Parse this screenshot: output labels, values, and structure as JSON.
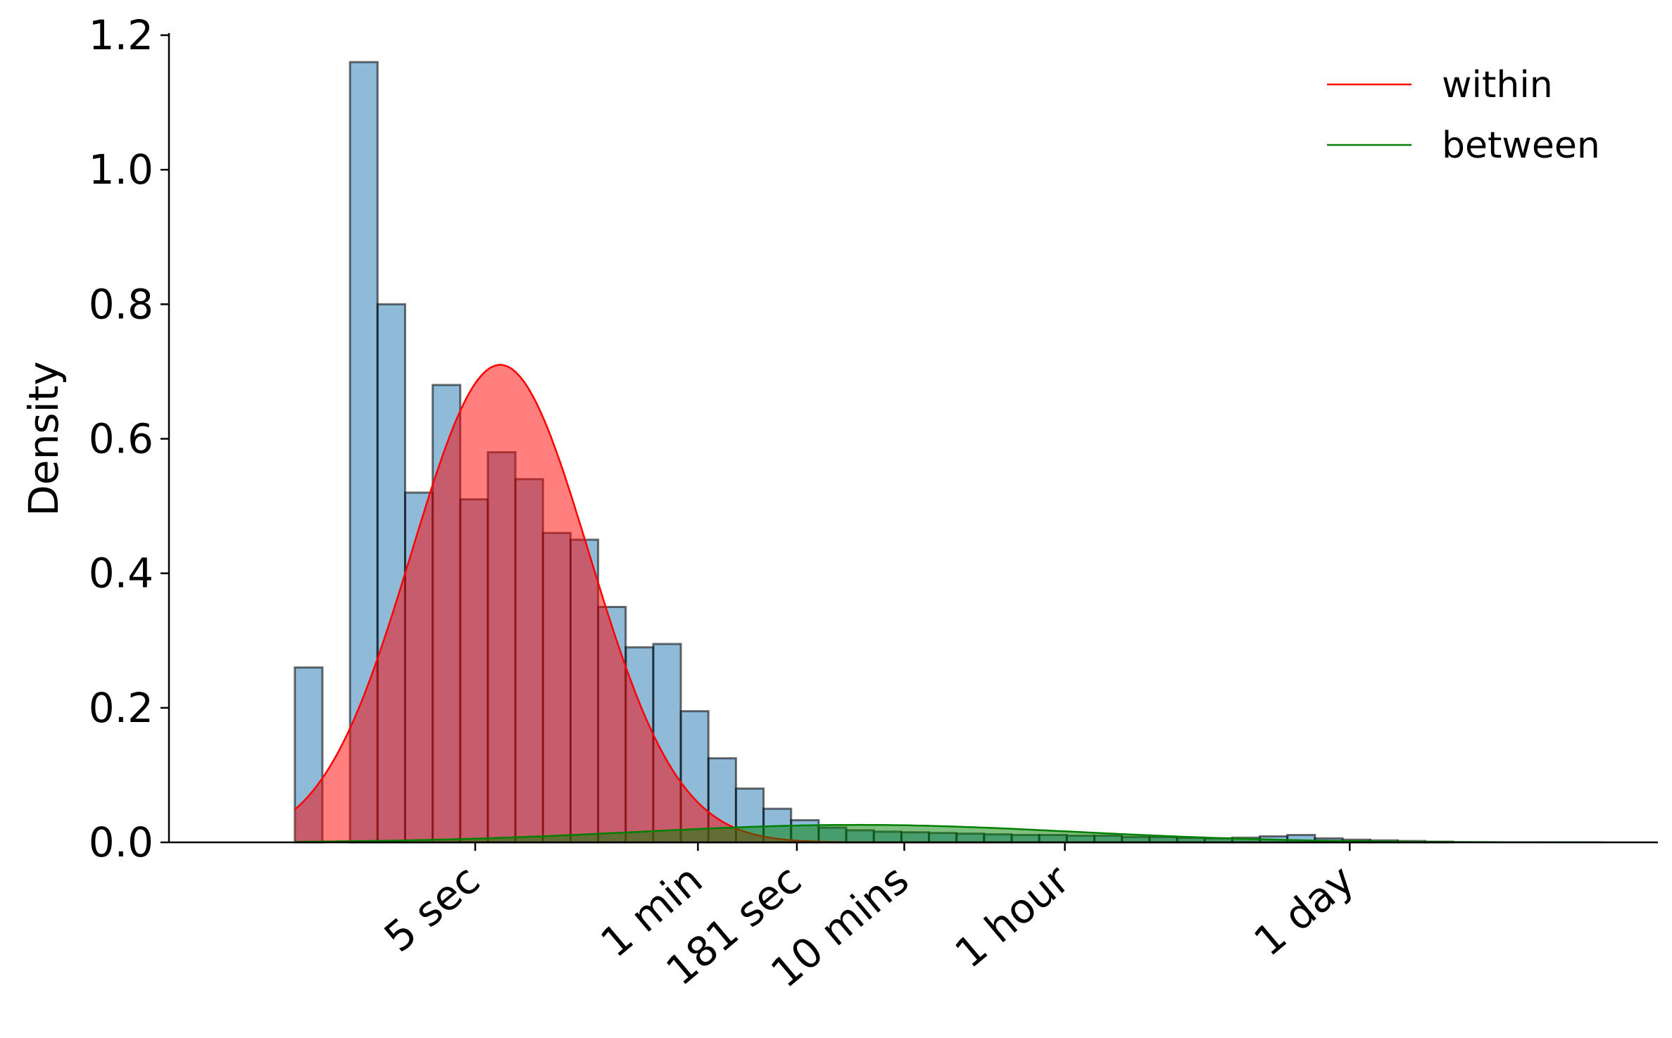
{
  "chart_data": {
    "type": "bar",
    "ylabel": "Density",
    "xlabel": "",
    "ylim": [
      0,
      1.2
    ],
    "yticks": [
      0.0,
      0.2,
      0.4,
      0.6,
      0.8,
      1.0,
      1.2
    ],
    "ytick_labels": [
      "0.0",
      "0.2",
      "0.4",
      "0.6",
      "0.8",
      "1.0",
      "1.2"
    ],
    "x_scale": "log10 of seconds",
    "xlim_log10_seconds": [
      -0.785,
      6.43
    ],
    "xticks": [
      {
        "label": "5 sec",
        "seconds": 5
      },
      {
        "label": "1 min",
        "seconds": 60
      },
      {
        "label": "181 sec",
        "seconds": 181
      },
      {
        "label": "10 mins",
        "seconds": 600
      },
      {
        "label": "1 hour",
        "seconds": 3600
      },
      {
        "label": "1 day",
        "seconds": 86400
      }
    ],
    "histogram": {
      "color": "#1f77b4",
      "bin_start_log10_seconds": -0.175,
      "bin_width_log10_seconds": 0.1336,
      "densities": [
        0.26,
        0.0,
        1.16,
        0.8,
        0.52,
        0.68,
        0.51,
        0.58,
        0.54,
        0.46,
        0.45,
        0.35,
        0.29,
        0.295,
        0.195,
        0.125,
        0.08,
        0.05,
        0.033,
        0.022,
        0.018,
        0.016,
        0.015,
        0.014,
        0.013,
        0.012,
        0.011,
        0.011,
        0.01,
        0.01,
        0.008,
        0.008,
        0.007,
        0.006,
        0.007,
        0.009,
        0.011,
        0.006,
        0.004,
        0.003,
        0.002,
        0.001
      ]
    },
    "series": [
      {
        "name": "within",
        "color": "#ff0000",
        "x_range_log10_seconds": [
          -0.175,
          3.19
        ],
        "peak_density": 0.71,
        "peak_log10_seconds": 0.82,
        "spread_log10": 0.43
      },
      {
        "name": "between",
        "color": "#008000",
        "x_range_log10_seconds": [
          -0.175,
          6.17
        ],
        "peak_density": 0.026,
        "peak_log10_seconds": 2.55,
        "spread_log10": 1.05
      }
    ],
    "legend": {
      "placement": "top-right",
      "entries": [
        "within",
        "between"
      ]
    }
  }
}
